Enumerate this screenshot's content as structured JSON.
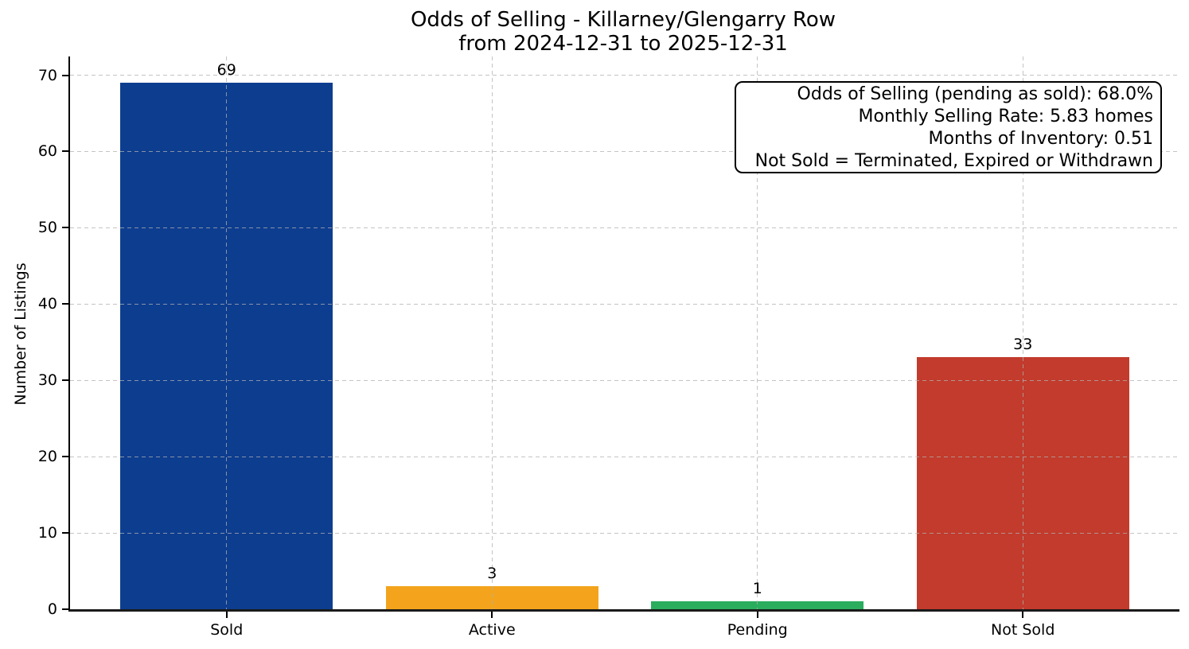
{
  "chart_data": {
    "type": "bar",
    "title": "Odds of Selling - Killarney/Glengarry Row",
    "subtitle": "from 2024-12-31 to 2025-12-31",
    "categories": [
      "Sold",
      "Active",
      "Pending",
      "Not Sold"
    ],
    "values": [
      69,
      3,
      1,
      33
    ],
    "value_labels": [
      "69",
      "3",
      "1",
      "33"
    ],
    "bar_colors": [
      "#0d3d8f",
      "#f3a41c",
      "#2bad5e",
      "#c23b2c"
    ],
    "xlabel": "",
    "ylabel": "Number of Listings",
    "ylim": [
      0,
      72.45
    ],
    "yticks": [
      0,
      10,
      20,
      30,
      40,
      50,
      60,
      70
    ],
    "grid": true,
    "grid_line_style": "dashed",
    "grid_color": "#b0b0b0",
    "background_color": "#ffffff",
    "text_color": "#000000",
    "legend": null,
    "annotation": {
      "lines": [
        "Odds of Selling (pending as sold): 68.0%",
        "Monthly Selling Rate: 5.83 homes",
        "Months of Inventory: 0.51",
        "Not Sold = Terminated, Expired or Withdrawn"
      ]
    }
  }
}
